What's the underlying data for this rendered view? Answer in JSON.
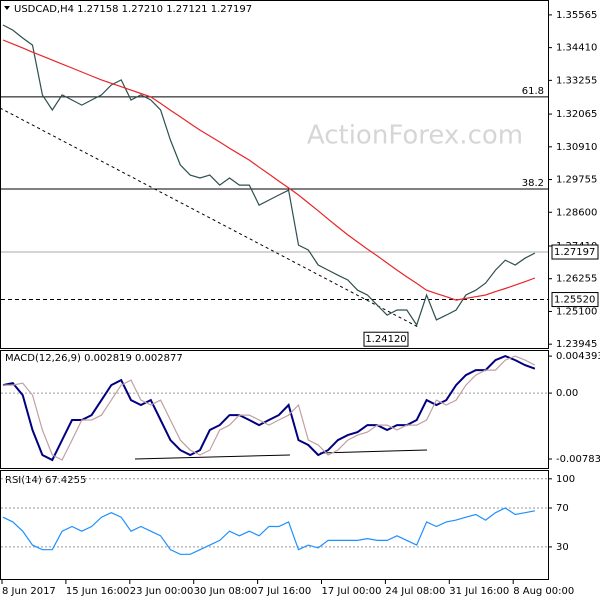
{
  "chart_data": [
    {
      "type": "line",
      "title": "USDCAD,H4  1.27158 1.27210 1.27121 1.27197",
      "watermark": "ActionForex.com",
      "ylim": [
        1.2381,
        1.3602
      ],
      "yticks": [
        1.35565,
        {
          "value": 1.3441,
          "label": "1.34410"
        },
        1.33255,
        1.32065,
        {
          "value": 1.3091,
          "label": "1.30910"
        },
        1.29755,
        {
          "value": 1.286,
          "label": "1.28600"
        },
        {
          "value": 1.2741,
          "label": "1.27410"
        },
        1.26255,
        {
          "value": 1.251,
          "label": "1.25100"
        },
        1.23945
      ],
      "levels": [
        {
          "value": 1.3267,
          "label": "61.8"
        },
        {
          "value": 1.2942,
          "label": "38.2"
        }
      ],
      "markers": [
        1.27197,
        {
          "value": 1.2552,
          "label": "1.25520"
        },
        {
          "value": 1.2412,
          "label": "1.24120"
        }
      ],
      "series": [
        {
          "color": "#2f4f4f",
          "values": [
            1.3521,
            1.3503,
            1.3475,
            1.345,
            1.3274,
            1.3221,
            1.3274,
            1.3256,
            1.3238,
            1.3256,
            1.3274,
            1.3309,
            1.3327,
            1.3256,
            1.3274,
            1.3256,
            1.3221,
            1.3115,
            1.3027,
            1.2991,
            1.2981,
            1.2991,
            1.2956,
            1.2981,
            1.2956,
            1.2956,
            1.2885,
            1.2903,
            1.2921,
            1.2938,
            1.2744,
            1.2727,
            1.2674,
            1.2656,
            1.2638,
            1.2621,
            1.2585,
            1.2568,
            1.2532,
            1.2497,
            1.2515,
            1.2515,
            1.2462,
            1.2568,
            1.248,
            1.2497,
            1.2515,
            1.2568,
            1.2585,
            1.261,
            1.2656,
            1.2691,
            1.2674,
            1.2698,
            1.2716
          ]
        },
        {
          "color": "#e8262a",
          "values": [
            1.3468,
            1.3454,
            1.344,
            1.3425,
            1.3411,
            1.3397,
            1.3383,
            1.3369,
            1.3355,
            1.3341,
            1.3327,
            1.3315,
            1.3303,
            1.3291,
            1.3279,
            1.3267,
            1.3244,
            1.322,
            1.3197,
            1.3173,
            1.315,
            1.3129,
            1.3108,
            1.3086,
            1.3065,
            1.3044,
            1.3019,
            1.2995,
            1.297,
            1.2946,
            1.2921,
            1.2893,
            1.2865,
            1.2836,
            1.2808,
            1.278,
            1.2755,
            1.273,
            1.2706,
            1.2681,
            1.2656,
            1.2632,
            1.2609,
            1.2585,
            1.2573,
            1.2562,
            1.255,
            1.2556,
            1.2562,
            1.2568,
            1.258,
            1.2591,
            1.2603,
            1.2615,
            1.2628
          ]
        }
      ]
    },
    {
      "type": "line",
      "title": "MACD(12,26,9) 0.002819 0.002877",
      "ylim": [
        -0.0089,
        0.005
      ],
      "yticks": [
        0.004393,
        {
          "value": 0,
          "label": "0.00"
        },
        -0.007833
      ],
      "series": [
        {
          "color": "#000080",
          "values": [
            0.00095,
            0.00119,
            -0.00024,
            -0.00439,
            -0.00736,
            -0.00795,
            -0.00558,
            -0.0032,
            -0.0032,
            -0.00261,
            -0.00083,
            0.00095,
            0.00154,
            -0.00083,
            -0.00142,
            -0.00083,
            -0.0032,
            -0.00558,
            -0.00677,
            -0.00736,
            -0.00677,
            -0.00439,
            -0.0038,
            -0.00261,
            -0.00261,
            -0.0032,
            -0.0038,
            -0.0032,
            -0.00261,
            -0.00142,
            -0.00558,
            -0.00617,
            -0.00736,
            -0.00677,
            -0.00558,
            -0.00499,
            -0.00463,
            -0.0038,
            -0.0038,
            -0.00439,
            -0.0038,
            -0.0038,
            -0.0032,
            -0.00083,
            -0.00142,
            -0.00083,
            0.00095,
            0.00214,
            0.00273,
            0.00273,
            0.00392,
            0.00439,
            0.00392,
            0.00332,
            0.0029
          ]
        },
        {
          "color": "#c0a0a0",
          "values": [
            0.00095,
            0.00095,
            0.00119,
            -0.00024,
            -0.00439,
            -0.00736,
            -0.00795,
            -0.00558,
            -0.0032,
            -0.0032,
            -0.00261,
            -0.00083,
            0.00095,
            0.00154,
            -0.00083,
            -0.00142,
            -0.00083,
            -0.0032,
            -0.00558,
            -0.00677,
            -0.00736,
            -0.00677,
            -0.00439,
            -0.0038,
            -0.00261,
            -0.00261,
            -0.0032,
            -0.0038,
            -0.0032,
            -0.00261,
            -0.00142,
            -0.00558,
            -0.00617,
            -0.00736,
            -0.00677,
            -0.00558,
            -0.00499,
            -0.00463,
            -0.0038,
            -0.0038,
            -0.00439,
            -0.0038,
            -0.0038,
            -0.0032,
            -0.00083,
            -0.00142,
            -0.00083,
            0.00095,
            0.00214,
            0.00273,
            0.00273,
            0.00392,
            0.00439,
            0.00392,
            0.00332
          ]
        }
      ]
    },
    {
      "type": "line",
      "title": "RSI(14) 67.4255",
      "ylim": [
        -4,
        107
      ],
      "yticks": [
        100,
        70,
        30
      ],
      "xtick_labels": [
        "8 Jun 2017",
        "15 Jun 16:00",
        "23 Jun 00:00",
        "30 Jun 08:00",
        "7 Jul 16:00",
        "17 Jul 00:00",
        "24 Jul 08:00",
        "31 Jul 16:00",
        "8 Aug 00:00"
      ],
      "series": [
        {
          "color": "#1e90ff",
          "values": [
            60.5,
            55.7,
            46.2,
            31.9,
            27.1,
            27.1,
            46.2,
            51,
            46.2,
            51,
            60.5,
            65.2,
            60.5,
            46.2,
            51,
            46.2,
            41.4,
            27.1,
            22.4,
            22.4,
            27.1,
            31.9,
            36.7,
            46.2,
            41.4,
            46.2,
            41.4,
            51,
            51,
            55.7,
            27.1,
            31.9,
            29,
            36.7,
            36.7,
            36.7,
            36.7,
            38.6,
            36.7,
            36.7,
            41.4,
            36.7,
            31.9,
            55.7,
            51,
            55.7,
            57.6,
            60.5,
            63.3,
            57.6,
            65.2,
            70,
            63.3,
            65.2,
            67.1
          ]
        }
      ]
    }
  ]
}
